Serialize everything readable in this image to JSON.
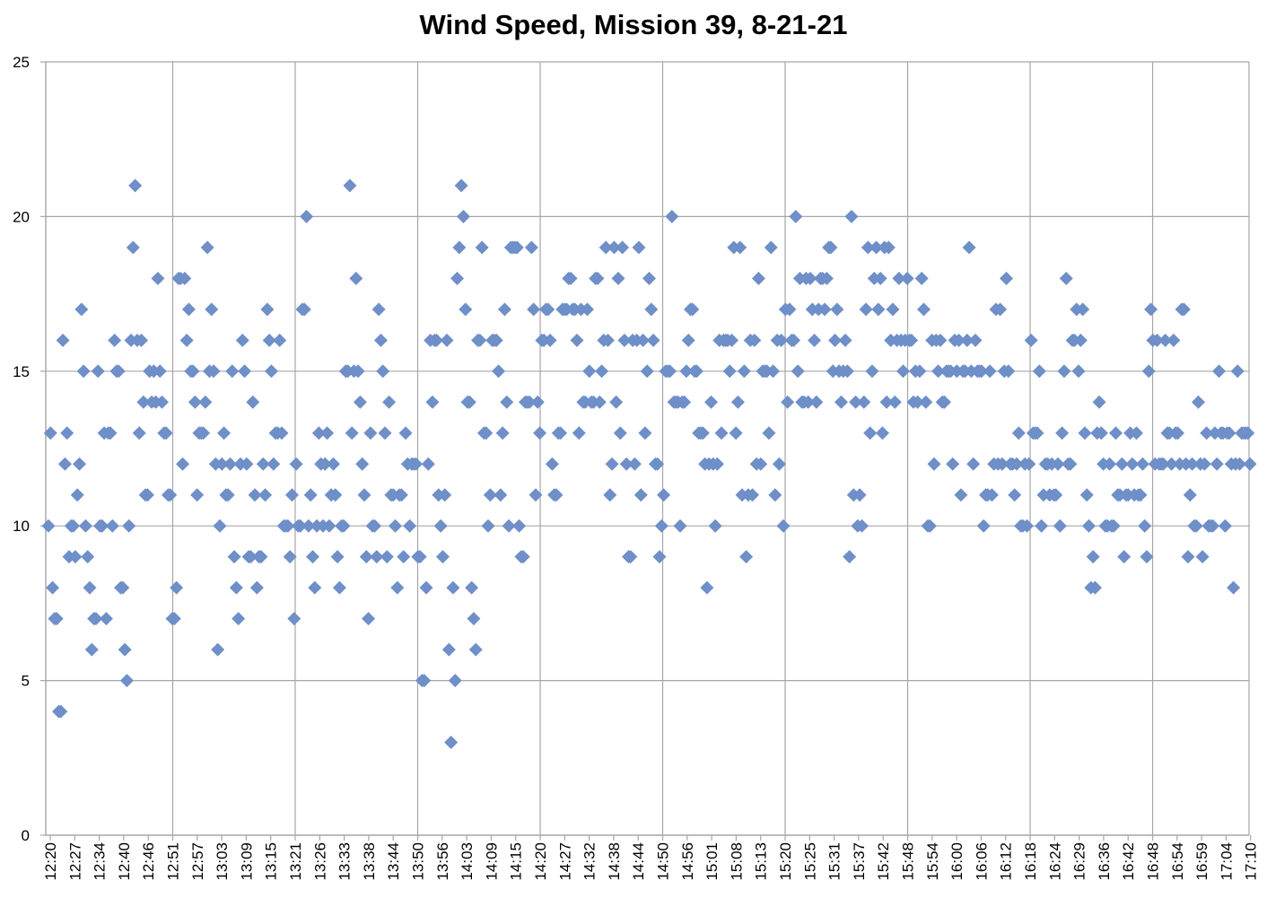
{
  "chart_data": {
    "type": "scatter",
    "title": "Wind Speed, Mission 39, 8-21-21",
    "xlabel": "",
    "ylabel": "",
    "ylim": [
      0,
      25
    ],
    "y_ticks": [
      0,
      5,
      10,
      15,
      20,
      25
    ],
    "x_tick_labels": [
      "12:20",
      "12:27",
      "12:34",
      "12:40",
      "12:46",
      "12:51",
      "12:57",
      "13:03",
      "13:09",
      "13:15",
      "13:21",
      "13:26",
      "13:33",
      "13:38",
      "13:44",
      "13:50",
      "13:56",
      "14:03",
      "14:09",
      "14:15",
      "14:20",
      "14:27",
      "14:32",
      "14:38",
      "14:44",
      "14:50",
      "14:56",
      "15:01",
      "15:08",
      "15:13",
      "15:20",
      "15:25",
      "15:31",
      "15:37",
      "15:42",
      "15:48",
      "15:54",
      "16:00",
      "16:06",
      "16:12",
      "16:18",
      "16:24",
      "16:29",
      "16:36",
      "16:42",
      "16:48",
      "16:54",
      "16:59",
      "17:04",
      "17:10"
    ],
    "major_grid_every": 5,
    "grid": true,
    "legend": "none",
    "marker": "diamond",
    "colors": {
      "marker": "#6F8FC8",
      "grid": "#A6A6A6"
    },
    "series": [
      {
        "values": [
          10,
          13,
          8,
          7,
          7,
          4,
          4,
          16,
          12,
          13,
          9,
          10,
          10,
          9,
          11,
          12,
          17,
          15,
          10,
          9,
          8,
          6,
          7,
          7,
          15,
          10,
          10,
          13,
          7,
          13,
          13,
          10,
          16,
          15,
          15,
          8,
          8,
          6,
          5,
          10,
          16,
          19,
          21,
          16,
          13,
          16,
          14,
          11,
          11,
          15,
          14,
          15,
          14,
          18,
          15,
          14,
          13,
          13,
          11,
          11,
          7,
          7,
          8,
          18,
          18,
          12,
          18,
          16,
          17,
          15,
          15,
          14,
          11,
          13,
          13,
          13,
          14,
          19,
          15,
          17,
          15,
          12,
          6,
          10,
          12,
          13,
          11,
          11,
          12,
          15,
          9,
          8,
          7,
          12,
          16,
          15,
          12,
          9,
          9,
          14,
          11,
          8,
          9,
          9,
          12,
          11,
          17,
          16,
          15,
          12,
          13,
          13,
          16,
          13,
          10,
          10,
          10,
          9,
          11,
          7,
          12,
          10,
          10,
          17,
          17,
          20,
          10,
          11,
          9,
          8,
          10,
          13,
          12,
          10,
          12,
          13,
          10,
          11,
          12,
          11,
          9,
          8,
          10,
          10,
          15,
          15,
          21,
          13,
          15,
          18,
          15,
          14,
          12,
          11,
          9,
          7,
          13,
          10,
          10,
          9,
          17,
          16,
          15,
          13,
          9,
          14,
          11,
          11,
          10,
          8,
          11,
          11,
          9,
          13,
          12,
          10,
          12,
          12,
          12,
          9,
          9,
          5,
          5,
          8,
          12,
          16,
          14,
          16,
          16,
          11,
          10,
          9,
          11,
          16,
          6,
          3,
          8,
          5,
          18,
          19,
          21,
          20,
          17,
          14,
          14,
          8,
          7,
          6,
          16,
          16,
          19,
          13,
          13,
          10,
          11,
          16,
          16,
          16,
          15,
          11,
          13,
          17,
          14,
          10,
          19,
          19,
          19,
          19,
          10,
          9,
          9,
          14,
          14,
          14,
          19,
          17,
          11,
          14,
          13,
          16,
          16,
          17,
          17,
          16,
          12,
          11,
          11,
          13,
          13,
          17,
          17,
          17,
          18,
          18,
          17,
          17,
          16,
          13,
          17,
          14,
          14,
          17,
          15,
          14,
          14,
          18,
          18,
          14,
          15,
          16,
          19,
          16,
          11,
          12,
          19,
          14,
          18,
          13,
          19,
          16,
          12,
          9,
          9,
          16,
          12,
          16,
          19,
          11,
          16,
          13,
          15,
          18,
          17,
          16,
          12,
          12,
          9,
          10,
          11,
          15,
          15,
          15,
          20,
          14,
          14,
          14,
          10,
          14,
          14,
          15,
          16,
          17,
          17,
          15,
          15,
          13,
          13,
          13,
          12,
          8,
          12,
          14,
          12,
          10,
          12,
          16,
          13,
          16,
          16,
          16,
          15,
          16,
          19,
          13,
          14,
          19,
          11,
          15,
          9,
          11,
          16,
          11,
          16,
          12,
          18,
          12,
          15,
          15,
          15,
          13,
          19,
          15,
          11,
          16,
          12,
          16,
          10,
          17,
          14,
          17,
          16,
          16,
          20,
          15,
          18,
          14,
          14,
          18,
          14,
          18,
          17,
          16,
          14,
          17,
          18,
          18,
          17,
          18,
          19,
          19,
          15,
          16,
          17,
          15,
          14,
          15,
          16,
          15,
          9,
          20,
          11,
          14,
          10,
          11,
          10,
          14,
          17,
          19,
          13,
          15,
          18,
          19,
          17,
          18,
          13,
          19,
          14,
          19,
          16,
          17,
          14,
          16,
          18,
          16,
          15,
          16,
          18,
          16,
          16,
          14,
          15,
          14,
          15,
          18,
          17,
          14,
          10,
          10,
          16,
          12,
          16,
          15,
          16,
          14,
          14,
          15,
          15,
          15,
          12,
          16,
          15,
          16,
          11,
          15,
          15,
          16,
          19,
          15,
          12,
          16,
          15,
          15,
          15,
          10,
          11,
          11,
          15,
          11,
          12,
          17,
          12,
          17,
          12,
          15,
          18,
          15,
          12,
          12,
          11,
          12,
          13,
          10,
          10,
          12,
          10,
          12,
          16,
          13,
          13,
          13,
          15,
          10,
          11,
          12,
          12,
          11,
          12,
          11,
          11,
          12,
          10,
          13,
          15,
          18,
          12,
          12,
          16,
          16,
          17,
          15,
          16,
          17,
          13,
          11,
          10,
          8,
          9,
          8,
          13,
          14,
          13,
          12,
          10,
          10,
          12,
          10,
          10,
          13,
          11,
          11,
          12,
          9,
          11,
          11,
          13,
          12,
          11,
          13,
          11,
          11,
          12,
          10,
          9,
          15,
          17,
          16,
          12,
          16,
          12,
          12,
          12,
          16,
          13,
          13,
          12,
          16,
          13,
          13,
          12,
          17,
          17,
          12,
          9,
          11,
          12,
          10,
          10,
          14,
          12,
          9,
          12,
          13,
          10,
          10,
          10,
          13,
          12,
          15,
          13,
          13,
          10,
          13,
          13,
          12,
          8,
          12,
          15,
          12,
          13,
          13,
          13,
          13,
          12
        ]
      }
    ]
  }
}
